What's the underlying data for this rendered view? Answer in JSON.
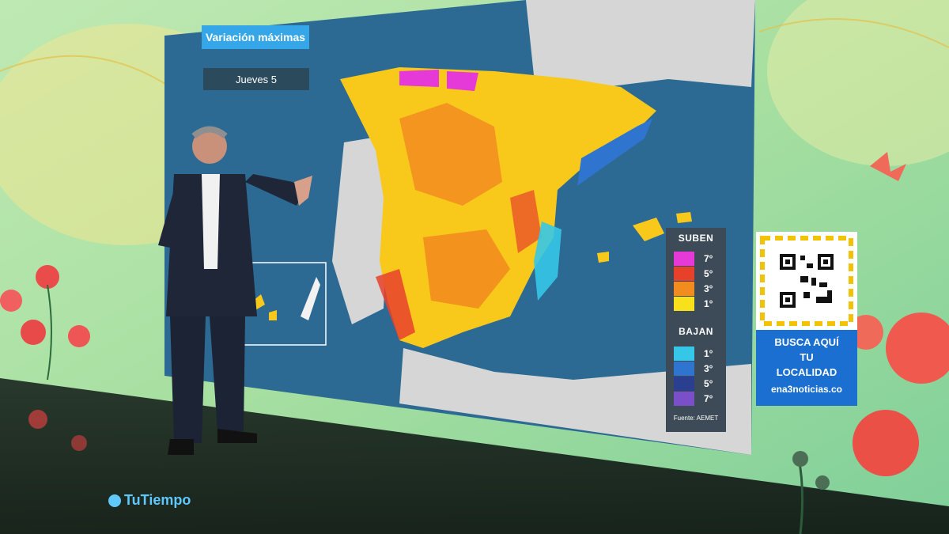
{
  "map_panel": {
    "title": "Variación máximas",
    "day": "Jueves 5"
  },
  "legend": {
    "up_header": "SUBEN",
    "up_items": [
      {
        "label": "7°",
        "color": "#e53ad8"
      },
      {
        "label": "5°",
        "color": "#e8412b"
      },
      {
        "label": "3°",
        "color": "#f28c1e"
      },
      {
        "label": "1°",
        "color": "#f8e01b"
      }
    ],
    "down_header": "BAJAN",
    "down_items": [
      {
        "label": "1°",
        "color": "#35c6e8"
      },
      {
        "label": "3°",
        "color": "#2f74cf"
      },
      {
        "label": "5°",
        "color": "#2a3f8f"
      },
      {
        "label": "7°",
        "color": "#7a4fc9"
      }
    ],
    "source": "Fuente: AEMET"
  },
  "qr_card": {
    "line1": "BUSCA AQUÍ",
    "line2": "TU",
    "line3": "LOCALIDAD",
    "url": "ena3noticias.co"
  },
  "logo": {
    "text": "TuTiempo"
  },
  "colors": {
    "sea": "#2c6a93",
    "land_gray": "#d6d6d6",
    "accent_blue": "#35a7e8",
    "legend_bg": "#3c4b57"
  }
}
